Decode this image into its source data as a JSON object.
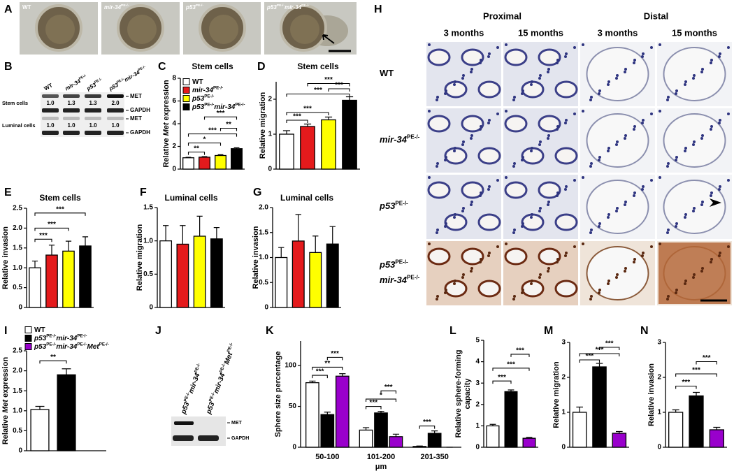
{
  "panel_A": {
    "letter": "A",
    "labels": [
      [
        {
          "t": "WT"
        }
      ],
      [
        {
          "t": "mir-34",
          "i": true,
          "s": "PE-/-"
        }
      ],
      [
        {
          "t": "p53",
          "i": true,
          "s": "PE-/-"
        }
      ],
      [
        {
          "t": "p53",
          "i": true,
          "s": "PE-/-"
        },
        {
          "t": "mir-34",
          "i": true,
          "s": "PE-/-"
        }
      ]
    ]
  },
  "panel_B": {
    "letter": "B",
    "lanes": [
      [
        {
          "t": "WT"
        }
      ],
      [
        {
          "t": "mir-34",
          "i": true,
          "s": "PE-/-"
        }
      ],
      [
        {
          "t": "p53",
          "i": true,
          "s": "PE-/-"
        }
      ],
      [
        {
          "t": "p53",
          "i": true,
          "s": "PE-/-"
        },
        {
          "t": "mir-34",
          "i": true,
          "s": "PE-/-"
        }
      ]
    ],
    "bands": [
      "MET",
      "GAPDH"
    ],
    "groups": [
      {
        "label": "Stem cells",
        "quant": [
          "1.0",
          "1.3",
          "1.3",
          "2.0"
        ]
      },
      {
        "label": "Luminal cells",
        "quant": [
          "1.0",
          "1.0",
          "1.0",
          "1.0"
        ]
      }
    ]
  },
  "chart_data": [
    {
      "type": "bar",
      "letter": "C",
      "title": "Stem cells",
      "ylabel": [
        [
          {
            "t": "Relative "
          },
          {
            "t": "Met",
            "i": true
          },
          {
            "t": " expression"
          }
        ]
      ],
      "ylim": [
        0,
        8
      ],
      "yticks": [
        0,
        2,
        4,
        6,
        8
      ],
      "values": [
        1.0,
        1.05,
        1.2,
        1.8
      ],
      "errors": [
        0.04,
        0.05,
        0.07,
        0.08
      ],
      "colors": [
        "#ffffff",
        "#e41a1c",
        "#ffff00",
        "#000000"
      ],
      "legend": [
        [
          {
            "t": "WT"
          }
        ],
        [
          {
            "t": "mir-34",
            "i": true,
            "s": "PE-/-"
          }
        ],
        [
          {
            "t": "p53",
            "i": true,
            "s": "PE-/-"
          }
        ],
        [
          {
            "t": "p53",
            "i": true,
            "s": "PE-/-"
          },
          {
            "t": "mir-34",
            "i": true,
            "s": "PE-/-"
          }
        ]
      ],
      "significance": [
        {
          "pair": [
            0,
            1
          ],
          "y": 1.5,
          "label": "**"
        },
        {
          "pair": [
            0,
            2
          ],
          "y": 2.3,
          "label": "*"
        },
        {
          "pair": [
            0,
            3
          ],
          "y": 3.1,
          "label": "***"
        },
        {
          "pair": [
            2,
            3
          ],
          "y": 3.6,
          "label": "**"
        },
        {
          "pair": [
            1,
            3
          ],
          "y": 4.6,
          "label": "***"
        }
      ]
    },
    {
      "type": "bar",
      "letter": "D",
      "title": "Stem cells",
      "ylabel": [
        [
          {
            "t": "Relative migration"
          }
        ]
      ],
      "ylim": [
        0,
        2.5
      ],
      "yticks": [
        0,
        1,
        2
      ],
      "values": [
        1.0,
        1.22,
        1.41,
        1.97
      ],
      "errors": [
        0.1,
        0.07,
        0.08,
        0.1
      ],
      "colors": [
        "#ffffff",
        "#e41a1c",
        "#ffff00",
        "#000000"
      ],
      "significance": [
        {
          "pair": [
            0,
            1
          ],
          "y": 1.4,
          "label": "***"
        },
        {
          "pair": [
            0,
            2
          ],
          "y": 1.62,
          "label": "***"
        },
        {
          "pair": [
            0,
            3
          ],
          "y": 2.15,
          "label": "***"
        },
        {
          "pair": [
            2,
            3
          ],
          "y": 2.3,
          "label": "***"
        },
        {
          "pair": [
            1,
            3
          ],
          "y": 2.45,
          "label": "***"
        }
      ]
    },
    {
      "type": "bar",
      "letter": "E",
      "title": "Stem cells",
      "ylabel": [
        [
          {
            "t": "Relative invasion"
          }
        ]
      ],
      "ylim": [
        0,
        2.5
      ],
      "yticks": [
        0,
        0.5,
        {
          "value": 1,
          "label": "1.0"
        },
        1.5,
        {
          "value": 2,
          "label": "2.0"
        },
        2.5
      ],
      "values": [
        1.0,
        1.32,
        1.42,
        1.55
      ],
      "errors": [
        0.17,
        0.25,
        0.25,
        0.23
      ],
      "colors": [
        "#ffffff",
        "#e41a1c",
        "#ffff00",
        "#000000"
      ],
      "significance": [
        {
          "pair": [
            0,
            1
          ],
          "y": 1.72,
          "label": "***"
        },
        {
          "pair": [
            0,
            2
          ],
          "y": 2.0,
          "label": "***"
        },
        {
          "pair": [
            0,
            3
          ],
          "y": 2.38,
          "label": "***"
        }
      ]
    },
    {
      "type": "bar",
      "letter": "F",
      "title": "Luminal cells",
      "ylabel": [
        [
          {
            "t": "Relative migration"
          }
        ]
      ],
      "ylim": [
        0,
        1.5
      ],
      "yticks": [
        0,
        0.5,
        {
          "value": 1,
          "label": "1.0"
        },
        1.5
      ],
      "values": [
        1.0,
        0.95,
        1.07,
        1.03
      ],
      "errors": [
        0.23,
        0.28,
        0.3,
        0.17
      ],
      "colors": [
        "#ffffff",
        "#e41a1c",
        "#ffff00",
        "#000000"
      ]
    },
    {
      "type": "bar",
      "letter": "G",
      "title": "Luminal cells",
      "ylabel": [
        [
          {
            "t": "Relative invasion"
          }
        ]
      ],
      "ylim": [
        0,
        2
      ],
      "yticks": [
        0,
        0.5,
        {
          "value": 1,
          "label": "1.0"
        },
        1.5,
        {
          "value": 2,
          "label": "2.0"
        }
      ],
      "values": [
        1.0,
        1.33,
        1.1,
        1.27
      ],
      "errors": [
        0.2,
        0.53,
        0.33,
        0.35
      ],
      "colors": [
        "#ffffff",
        "#e41a1c",
        "#ffff00",
        "#000000"
      ]
    },
    {
      "type": "bar",
      "letter": "I",
      "ylabel": [
        [
          {
            "t": "Relative "
          },
          {
            "t": "Met",
            "i": true
          },
          {
            "t": " expression"
          }
        ]
      ],
      "ylim": [
        0,
        2.5
      ],
      "yticks": [
        0,
        0.5,
        {
          "value": 1,
          "label": "1.0"
        },
        1.5,
        {
          "value": 2,
          "label": "2.0"
        },
        2.5
      ],
      "values": [
        1.03,
        1.9,
        null
      ],
      "errors": [
        0.08,
        0.15,
        null
      ],
      "colors": [
        "#ffffff",
        "#000000",
        "#9900cc"
      ],
      "legend": [
        [
          {
            "t": "WT"
          }
        ],
        [
          {
            "t": "p53",
            "i": true,
            "s": "PE-/-"
          },
          {
            "t": "mir-34",
            "i": true,
            "s": "PE-/-"
          }
        ],
        [
          {
            "t": "p53",
            "i": true,
            "s": "PE-/-"
          },
          {
            "t": "mir-34",
            "i": true,
            "s": "PE-/-"
          },
          {
            "t": "Met",
            "i": true,
            "s": "PE-/-"
          }
        ]
      ],
      "significance": [
        {
          "pair": [
            0,
            1
          ],
          "y": 2.25,
          "label": "**"
        }
      ]
    },
    {
      "type": "grouped_bar",
      "letter": "K",
      "ylabel": [
        [
          {
            "t": "Sphere size percentage"
          }
        ]
      ],
      "xlabel": "μm",
      "categories": [
        "50-100",
        "101-200",
        "201-350"
      ],
      "ylim": [
        0,
        130
      ],
      "yticks": [
        0,
        50,
        100
      ],
      "series": [
        {
          "color": "#ffffff",
          "values": [
            79,
            21,
            1
          ],
          "errors": [
            2,
            3,
            0.5
          ]
        },
        {
          "color": "#000000",
          "values": [
            40,
            42,
            17
          ],
          "errors": [
            3,
            2,
            3
          ]
        },
        {
          "color": "#9900cc",
          "values": [
            87,
            13,
            0
          ],
          "errors": [
            3,
            3,
            0
          ]
        }
      ],
      "significance": [
        {
          "group": 0,
          "pair": [
            0,
            1
          ],
          "y": 88,
          "label": "***"
        },
        {
          "group": 0,
          "pair": [
            0,
            2
          ],
          "y": 98,
          "label": "**"
        },
        {
          "group": 0,
          "pair": [
            1,
            2
          ],
          "y": 110,
          "label": "***"
        },
        {
          "group": 1,
          "pair": [
            0,
            1
          ],
          "y": 50,
          "label": "***"
        },
        {
          "group": 1,
          "pair": [
            0,
            2
          ],
          "y": 59,
          "label": "*"
        },
        {
          "group": 1,
          "pair": [
            1,
            2
          ],
          "y": 69,
          "label": "***"
        },
        {
          "group": 2,
          "pair": [
            0,
            1
          ],
          "y": 26,
          "label": "***"
        }
      ]
    },
    {
      "type": "bar",
      "letter": "L",
      "ylabel": [
        [
          {
            "t": "Relative sphere-forming"
          }
        ],
        [
          {
            "t": "capacity"
          }
        ]
      ],
      "ylim": [
        0,
        5
      ],
      "yticks": [
        0,
        1,
        2,
        3,
        4,
        5
      ],
      "values": [
        1.0,
        2.6,
        0.42
      ],
      "errors": [
        0.07,
        0.08,
        0.04
      ],
      "colors": [
        "#ffffff",
        "#000000",
        "#9900cc"
      ],
      "significance": [
        {
          "pair": [
            0,
            1
          ],
          "y": 3.1,
          "label": "***"
        },
        {
          "pair": [
            0,
            2
          ],
          "y": 3.7,
          "label": "***"
        },
        {
          "pair": [
            1,
            2
          ],
          "y": 4.35,
          "label": "***"
        }
      ]
    },
    {
      "type": "bar",
      "letter": "M",
      "ylabel": [
        [
          {
            "t": "Relative migration"
          }
        ]
      ],
      "ylim": [
        0,
        3
      ],
      "yticks": [
        0,
        1,
        2,
        3
      ],
      "values": [
        1.0,
        2.3,
        0.4
      ],
      "errors": [
        0.15,
        0.1,
        0.05
      ],
      "colors": [
        "#ffffff",
        "#000000",
        "#9900cc"
      ],
      "significance": [
        {
          "pair": [
            0,
            1
          ],
          "y": 2.5,
          "label": "***"
        },
        {
          "pair": [
            0,
            2
          ],
          "y": 2.68,
          "label": "***"
        },
        {
          "pair": [
            1,
            2
          ],
          "y": 2.86,
          "label": "***"
        }
      ]
    },
    {
      "type": "bar",
      "letter": "N",
      "ylabel": [
        [
          {
            "t": "Relative invasion"
          }
        ]
      ],
      "ylim": [
        0,
        3
      ],
      "yticks": [
        0,
        1,
        2,
        3
      ],
      "values": [
        1.0,
        1.47,
        0.5
      ],
      "errors": [
        0.07,
        0.1,
        0.07
      ],
      "colors": [
        "#ffffff",
        "#000000",
        "#9900cc"
      ],
      "significance": [
        {
          "pair": [
            0,
            1
          ],
          "y": 1.75,
          "label": "***"
        },
        {
          "pair": [
            0,
            2
          ],
          "y": 2.1,
          "label": "***"
        },
        {
          "pair": [
            1,
            2
          ],
          "y": 2.45,
          "label": "***"
        }
      ]
    }
  ],
  "panel_H": {
    "letter": "H",
    "groups": [
      "Proximal",
      "Distal"
    ],
    "columns": [
      "3 months",
      "15 months",
      "3 months",
      "15 months"
    ],
    "rows": [
      [
        [
          {
            "t": "WT"
          }
        ]
      ],
      [
        [
          {
            "t": "mir-34",
            "i": true,
            "s": "PE-/-"
          }
        ]
      ],
      [
        [
          {
            "t": "p53",
            "i": true,
            "s": "PE-/-"
          }
        ]
      ],
      [
        [
          {
            "t": "p53",
            "i": true,
            "s": "PE-/-"
          }
        ],
        [
          {
            "t": "mir-34",
            "i": true,
            "s": "PE-/-"
          }
        ]
      ]
    ]
  },
  "panel_J": {
    "letter": "J",
    "lanes": [
      [
        {
          "t": "p53",
          "i": true,
          "s": "PE-/-"
        },
        {
          "t": "mir-34",
          "i": true,
          "s": "PE-/-"
        }
      ],
      [
        {
          "t": "p53",
          "i": true,
          "s": "PE-/-"
        },
        {
          "t": "mir-34",
          "i": true,
          "s": "PE-/-"
        },
        {
          "t": "Met",
          "i": true,
          "s": "PE-/-"
        }
      ]
    ],
    "bands": [
      "MET",
      "GAPDH"
    ]
  }
}
